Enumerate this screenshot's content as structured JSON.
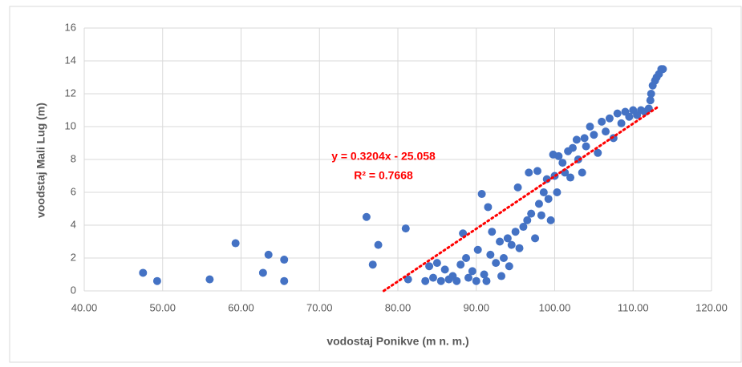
{
  "chart_data": {
    "type": "scatter",
    "x_label": "vodostaj Ponikve (m n. m.)",
    "y_label": "voodstaj Mali Lug (m)",
    "x": [
      47.5,
      49.3,
      56,
      59.3,
      62.8,
      63.5,
      65.5,
      65.5,
      76,
      76.8,
      77.5,
      81,
      81.3,
      83.5,
      84,
      84.5,
      85,
      85.5,
      86,
      86.5,
      87,
      87.5,
      88,
      88.3,
      88.7,
      89,
      89.5,
      90,
      90.2,
      90.7,
      91,
      91.3,
      91.5,
      91.8,
      92,
      92.5,
      93,
      93.2,
      93.5,
      94,
      94.2,
      94.5,
      95,
      95.3,
      95.5,
      96,
      96.5,
      96.7,
      97,
      97.5,
      97.8,
      98,
      98.3,
      98.6,
      99,
      99.2,
      99.5,
      99.8,
      100,
      100.3,
      100.5,
      101,
      101.3,
      101.7,
      102,
      102.3,
      102.8,
      103,
      103.5,
      103.8,
      104,
      104.5,
      105,
      105.5,
      106,
      106.5,
      107,
      107.5,
      108,
      108.5,
      109,
      109.5,
      110,
      110.5,
      111,
      111.5,
      112,
      112.2,
      112.3,
      112.5,
      112.8,
      113,
      113.3,
      113.6,
      113.8
    ],
    "values": [
      1.1,
      0.6,
      0.7,
      2.9,
      1.1,
      2.2,
      1.9,
      0.6,
      4.5,
      1.6,
      2.8,
      3.8,
      0.7,
      0.6,
      1.5,
      0.8,
      1.7,
      0.6,
      1.3,
      0.7,
      0.9,
      0.6,
      1.6,
      3.5,
      2.0,
      0.8,
      1.2,
      0.6,
      2.5,
      5.9,
      1.0,
      0.6,
      5.1,
      2.2,
      3.6,
      1.7,
      3.0,
      0.9,
      2.0,
      3.2,
      1.5,
      2.8,
      3.6,
      6.3,
      2.6,
      3.9,
      4.3,
      7.2,
      4.7,
      3.2,
      7.3,
      5.3,
      4.6,
      6.0,
      6.8,
      5.6,
      4.3,
      8.3,
      7.0,
      6.0,
      8.2,
      7.8,
      7.2,
      8.5,
      6.9,
      8.7,
      9.2,
      8.0,
      7.2,
      9.3,
      8.8,
      10.0,
      9.5,
      8.4,
      10.3,
      9.7,
      10.5,
      9.3,
      10.8,
      10.2,
      10.9,
      10.6,
      11.0,
      10.7,
      11.0,
      10.9,
      11.1,
      11.6,
      12.0,
      12.5,
      12.8,
      13.0,
      13.2,
      13.5,
      13.5
    ],
    "color": "#4472c4",
    "trendline": {
      "x": [
        78.2,
        113.2
      ],
      "values": [
        0,
        11.21
      ],
      "color": "#ff0000"
    },
    "annotation": [
      "y = 0.3204x - 25.058",
      "R² = 0.7668"
    ],
    "xlim": [
      40,
      120
    ],
    "xticks": [
      {
        "value": 40,
        "label": "40.00"
      },
      {
        "value": 50,
        "label": "50.00"
      },
      {
        "value": 60,
        "label": "60.00"
      },
      {
        "value": 70,
        "label": "70.00"
      },
      {
        "value": 80,
        "label": "80.00"
      },
      {
        "value": 90,
        "label": "90.00"
      },
      {
        "value": 100,
        "label": "100.00"
      },
      {
        "value": 110,
        "label": "110.00"
      },
      {
        "value": 120,
        "label": "120.00"
      }
    ],
    "ylim": [
      0,
      16
    ],
    "yticks": [
      0,
      2,
      4,
      6,
      8,
      10,
      12,
      14,
      16
    ],
    "grid": true
  }
}
